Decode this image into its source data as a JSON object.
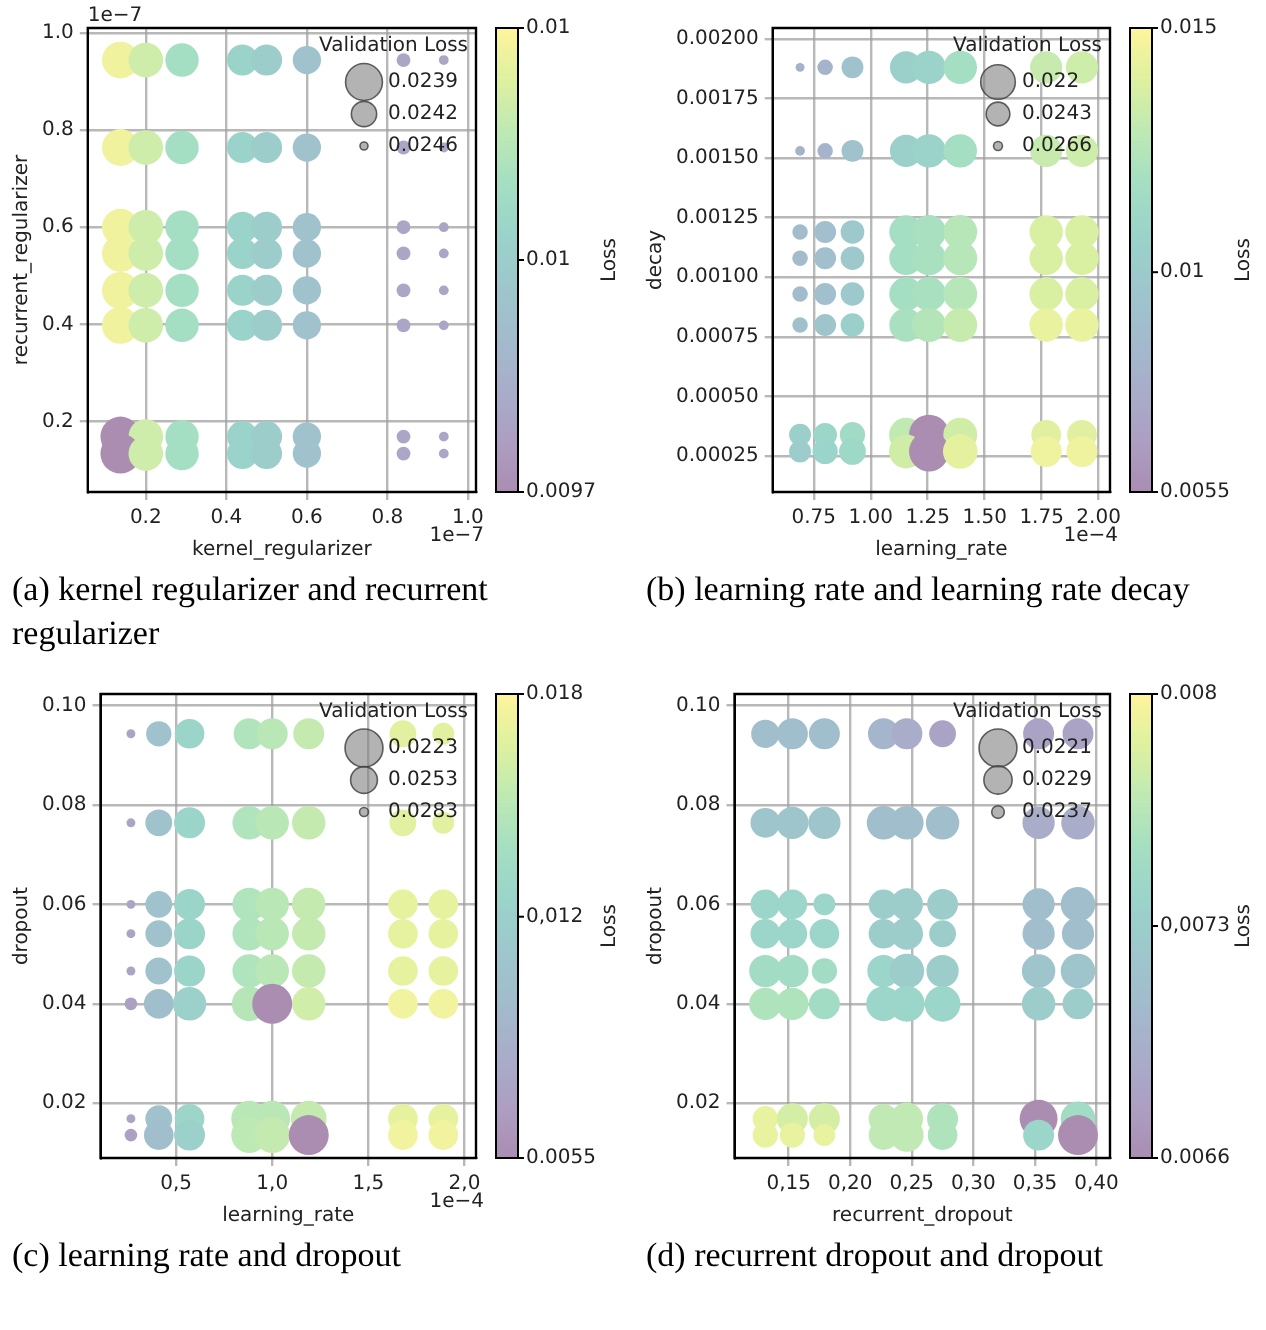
{
  "chart_data": [
    {
      "type": "bubble",
      "title": "(a) kernel regularizer and recurrent regularizer",
      "xlabel": "kernel_regularizer",
      "ylabel": "recurrent_regularizer",
      "clabel": "Loss",
      "legend_title": "Validation Loss",
      "grid": true,
      "marker": "circle",
      "annotations": [
        "1e−7",
        "1e−7"
      ],
      "xlim": [
        0.056,
        1.02
      ],
      "ylim": [
        0.055,
        1.01
      ],
      "xticks": [
        {
          "value": 0.2,
          "label": "0.2"
        },
        {
          "value": 0.4,
          "label": "0.4"
        },
        {
          "value": 0.6,
          "label": "0.6"
        },
        {
          "value": 0.8,
          "label": "0.8"
        },
        {
          "value": 1.0,
          "label": "1.0"
        }
      ],
      "yticks": [
        {
          "value": 0.2,
          "label": "0.2"
        },
        {
          "value": 0.4,
          "label": "0.4"
        },
        {
          "value": 0.6,
          "label": "0.6"
        },
        {
          "value": 0.8,
          "label": "0.8"
        },
        {
          "value": 1.0,
          "label": "1.0"
        }
      ],
      "clim": [
        0.0097,
        0.0103
      ],
      "cticks": [
        {
          "value": 0.0097,
          "label": "0.0097"
        },
        {
          "value": 0.01,
          "label": "0.01"
        },
        {
          "value": 0.0103,
          "label": "0.01"
        }
      ],
      "size_legend": [
        {
          "value": 0.85,
          "label": "0.0239"
        },
        {
          "value": 0.4,
          "label": "0.0242"
        },
        {
          "value": 0.04,
          "label": "0.0246"
        }
      ],
      "x": [
        0.137,
        0.2,
        0.29,
        0.44,
        0.5,
        0.6,
        0.84,
        0.94,
        0.137,
        0.2,
        0.29,
        0.44,
        0.5,
        0.6,
        0.84,
        0.94,
        0.137,
        0.2,
        0.29,
        0.44,
        0.5,
        0.6,
        0.84,
        0.94,
        0.137,
        0.2,
        0.29,
        0.44,
        0.5,
        0.6,
        0.84,
        0.94,
        0.137,
        0.2,
        0.29,
        0.44,
        0.5,
        0.6,
        0.84,
        0.94,
        0.137,
        0.2,
        0.29,
        0.44,
        0.5,
        0.6,
        0.84,
        0.94,
        0.137,
        0.2,
        0.29,
        0.44,
        0.5,
        0.6,
        0.84,
        0.94,
        0.137,
        0.2,
        0.29,
        0.44,
        0.5,
        0.6,
        0.84,
        0.94
      ],
      "values": [
        0.944,
        0.944,
        0.944,
        0.944,
        0.944,
        0.944,
        0.944,
        0.944,
        0.764,
        0.764,
        0.764,
        0.764,
        0.764,
        0.764,
        0.764,
        0.764,
        0.6,
        0.6,
        0.6,
        0.6,
        0.6,
        0.6,
        0.6,
        0.6,
        0.546,
        0.546,
        0.546,
        0.546,
        0.546,
        0.546,
        0.546,
        0.546,
        0.47,
        0.47,
        0.47,
        0.47,
        0.47,
        0.47,
        0.47,
        0.47,
        0.398,
        0.398,
        0.398,
        0.398,
        0.398,
        0.398,
        0.398,
        0.398,
        0.169,
        0.169,
        0.169,
        0.169,
        0.169,
        0.169,
        0.169,
        0.169,
        0.134,
        0.134,
        0.134,
        0.134,
        0.134,
        0.134,
        0.134,
        0.134
      ],
      "sizes": [
        0.85,
        0.75,
        0.7,
        0.6,
        0.6,
        0.5,
        0.12,
        0.06,
        0.85,
        0.75,
        0.7,
        0.6,
        0.6,
        0.5,
        0.12,
        0.06,
        0.85,
        0.75,
        0.7,
        0.6,
        0.6,
        0.5,
        0.12,
        0.06,
        0.85,
        0.75,
        0.7,
        0.6,
        0.6,
        0.5,
        0.12,
        0.06,
        0.85,
        0.75,
        0.7,
        0.6,
        0.6,
        0.5,
        0.12,
        0.06,
        0.85,
        0.75,
        0.7,
        0.6,
        0.6,
        0.5,
        0.12,
        0.06,
        1,
        0.75,
        0.7,
        0.6,
        0.6,
        0.5,
        0.12,
        0.06,
        1,
        0.75,
        0.7,
        0.6,
        0.6,
        0.5,
        0.12,
        0.06
      ],
      "cvalues": [
        0.01027,
        0.0102,
        0.0101,
        0.01003,
        0.01,
        0.00994,
        0.0098,
        0.0098,
        0.01027,
        0.0102,
        0.0101,
        0.01003,
        0.01,
        0.00994,
        0.0098,
        0.0098,
        0.01027,
        0.0102,
        0.0101,
        0.01003,
        0.01,
        0.00994,
        0.0098,
        0.0098,
        0.01027,
        0.0102,
        0.0101,
        0.01003,
        0.01,
        0.00994,
        0.0098,
        0.0098,
        0.01027,
        0.0102,
        0.0101,
        0.01003,
        0.01,
        0.00994,
        0.0098,
        0.0098,
        0.01027,
        0.0102,
        0.0101,
        0.01003,
        0.01,
        0.00994,
        0.0098,
        0.0098,
        0.0097,
        0.0102,
        0.0101,
        0.01003,
        0.01,
        0.00994,
        0.0098,
        0.0098,
        0.0097,
        0.0102,
        0.0101,
        0.01003,
        0.01,
        0.00994,
        0.0098,
        0.0098
      ]
    },
    {
      "type": "bubble",
      "title": "(b) learning rate and learning rate decay",
      "xlabel": "learning_rate",
      "ylabel": "decay",
      "clabel": "Loss",
      "legend_title": "Validation Loss",
      "grid": true,
      "marker": "circle",
      "annotations": [
        "1e−4"
      ],
      "xlim": [
        0.57,
        2.05
      ],
      "ylim": [
        0.0001,
        0.002045
      ],
      "xticks": [
        {
          "value": 0.75,
          "label": "0.75"
        },
        {
          "value": 1.0,
          "label": "1.00"
        },
        {
          "value": 1.25,
          "label": "1.25"
        },
        {
          "value": 1.5,
          "label": "1.50"
        },
        {
          "value": 1.75,
          "label": "1.75"
        },
        {
          "value": 2.0,
          "label": "2.00"
        }
      ],
      "yticks": [
        {
          "value": 0.00025,
          "label": "0.00025"
        },
        {
          "value": 0.0005,
          "label": "0.00050"
        },
        {
          "value": 0.00075,
          "label": "0.00075"
        },
        {
          "value": 0.001,
          "label": "0.00100"
        },
        {
          "value": 0.00125,
          "label": "0.00125"
        },
        {
          "value": 0.0015,
          "label": "0.00150"
        },
        {
          "value": 0.00175,
          "label": "0.00175"
        },
        {
          "value": 0.002,
          "label": "0.00200"
        }
      ],
      "clim": [
        0.0055,
        0.015
      ],
      "cticks": [
        {
          "value": 0.0055,
          "label": "0.0055"
        },
        {
          "value": 0.01,
          "label": "0.01"
        },
        {
          "value": 0.015,
          "label": "0.015"
        }
      ],
      "size_legend": [
        {
          "value": 0.75,
          "label": "0.022"
        },
        {
          "value": 0.35,
          "label": "0.0243"
        },
        {
          "value": 0.05,
          "label": "0.0266"
        }
      ],
      "x": [
        0.69,
        0.8,
        0.92,
        1.155,
        1.256,
        1.393,
        1.77,
        1.927,
        0.69,
        0.8,
        0.92,
        1.155,
        1.256,
        1.393,
        1.77,
        1.927,
        0.69,
        0.8,
        0.92,
        1.155,
        1.256,
        1.393,
        1.77,
        1.927,
        0.69,
        0.8,
        0.92,
        1.155,
        1.256,
        1.393,
        1.77,
        1.927,
        0.69,
        0.8,
        0.92,
        1.155,
        1.256,
        1.393,
        1.77,
        1.927,
        0.69,
        0.8,
        0.92,
        1.155,
        1.256,
        1.393,
        1.77,
        1.927,
        0.69,
        0.8,
        0.92,
        1.155,
        1.256,
        1.393,
        1.77,
        1.927,
        0.69,
        0.8,
        0.92,
        1.155,
        1.256,
        1.393,
        1.77,
        1.927
      ],
      "values": [
        0.00188,
        0.00188,
        0.00188,
        0.00188,
        0.00188,
        0.00188,
        0.00188,
        0.00188,
        0.00153,
        0.00153,
        0.00153,
        0.00153,
        0.00153,
        0.00153,
        0.00153,
        0.00153,
        0.00119,
        0.00119,
        0.00119,
        0.00119,
        0.00119,
        0.00119,
        0.00119,
        0.00119,
        0.00108,
        0.00108,
        0.00108,
        0.00108,
        0.00108,
        0.00108,
        0.00108,
        0.00108,
        0.00093,
        0.00093,
        0.00093,
        0.00093,
        0.00093,
        0.00093,
        0.00093,
        0.00093,
        0.0008,
        0.0008,
        0.0008,
        0.0008,
        0.0008,
        0.0008,
        0.0008,
        0.0008,
        0.00034,
        0.00034,
        0.00034,
        0.00034,
        0.00034,
        0.00034,
        0.00034,
        0.00034,
        0.00027,
        0.00027,
        0.00027,
        0.00027,
        0.00027,
        0.00027,
        0.00027,
        0.00027
      ],
      "sizes": [
        0.05,
        0.15,
        0.3,
        0.65,
        0.7,
        0.7,
        0.65,
        0.65,
        0.06,
        0.15,
        0.3,
        0.65,
        0.7,
        0.7,
        0.65,
        0.65,
        0.15,
        0.3,
        0.35,
        0.7,
        0.72,
        0.72,
        0.7,
        0.7,
        0.15,
        0.3,
        0.35,
        0.7,
        0.72,
        0.72,
        0.7,
        0.7,
        0.15,
        0.3,
        0.35,
        0.7,
        0.72,
        0.72,
        0.7,
        0.7,
        0.15,
        0.3,
        0.35,
        0.7,
        0.72,
        0.72,
        0.7,
        0.7,
        0.3,
        0.35,
        0.4,
        0.72,
        1,
        0.72,
        0.55,
        0.55,
        0.3,
        0.4,
        0.45,
        0.72,
        1,
        0.75,
        0.6,
        0.6
      ],
      "cvalues": [
        0.0079,
        0.0081,
        0.0093,
        0.0105,
        0.0107,
        0.0118,
        0.0132,
        0.0134,
        0.008,
        0.0081,
        0.0093,
        0.0105,
        0.0107,
        0.0118,
        0.0132,
        0.0134,
        0.0088,
        0.009,
        0.0098,
        0.0118,
        0.012,
        0.0126,
        0.0138,
        0.0138,
        0.0088,
        0.009,
        0.0098,
        0.0118,
        0.012,
        0.0126,
        0.0138,
        0.0138,
        0.0088,
        0.009,
        0.0098,
        0.0118,
        0.012,
        0.0126,
        0.0138,
        0.0138,
        0.0092,
        0.0095,
        0.0105,
        0.012,
        0.0125,
        0.0132,
        0.0143,
        0.0143,
        0.0105,
        0.011,
        0.0115,
        0.013,
        0.0055,
        0.0135,
        0.014,
        0.014,
        0.0102,
        0.0108,
        0.0112,
        0.0135,
        0.0055,
        0.0142,
        0.0145,
        0.0145
      ]
    },
    {
      "type": "bubble",
      "title": "(c) learning rate and dropout",
      "xlabel": "learning_rate",
      "ylabel": "dropout",
      "clabel": "Loss",
      "legend_title": "Validation Loss",
      "grid": true,
      "marker": "circle",
      "annotations": [
        "1e−4"
      ],
      "xlim": [
        0.107,
        2.06
      ],
      "ylim": [
        0.009,
        0.1023
      ],
      "xticks": [
        {
          "value": 0.5,
          "label": "0,5"
        },
        {
          "value": 1.0,
          "label": "1,0"
        },
        {
          "value": 1.5,
          "label": "1,5"
        },
        {
          "value": 2.0,
          "label": "2,0"
        }
      ],
      "yticks": [
        {
          "value": 0.02,
          "label": "0.02"
        },
        {
          "value": 0.04,
          "label": "0.04"
        },
        {
          "value": 0.06,
          "label": "0.06"
        },
        {
          "value": 0.08,
          "label": "0.08"
        },
        {
          "value": 0.1,
          "label": "0.10"
        }
      ],
      "clim": [
        0.0055,
        0.018
      ],
      "cticks": [
        {
          "value": 0.0055,
          "label": "0.0055"
        },
        {
          "value": 0.012,
          "label": "0,012"
        },
        {
          "value": 0.018,
          "label": "0.018"
        }
      ],
      "size_legend": [
        {
          "value": 0.9,
          "label": "0.0223"
        },
        {
          "value": 0.45,
          "label": "0.0253"
        },
        {
          "value": 0.05,
          "label": "0.0283"
        }
      ],
      "x": [
        0.265,
        0.41,
        0.57,
        0.88,
        1.0,
        1.19,
        1.68,
        1.89,
        0.265,
        0.41,
        0.57,
        0.88,
        1.0,
        1.19,
        1.68,
        1.89,
        0.265,
        0.41,
        0.57,
        0.88,
        1.0,
        1.19,
        1.68,
        1.89,
        0.265,
        0.41,
        0.57,
        0.88,
        1.0,
        1.19,
        1.68,
        1.89,
        0.265,
        0.41,
        0.57,
        0.88,
        1.0,
        1.19,
        1.68,
        1.89,
        0.265,
        0.41,
        0.57,
        0.88,
        1.0,
        1.19,
        1.68,
        1.89,
        0.265,
        0.41,
        0.57,
        0.88,
        1.0,
        1.19,
        1.68,
        1.89,
        0.265,
        0.41,
        0.57,
        0.88,
        1.0,
        1.19,
        1.68,
        1.89
      ],
      "values": [
        0.0943,
        0.0943,
        0.0943,
        0.0943,
        0.0943,
        0.0943,
        0.0943,
        0.0943,
        0.0764,
        0.0764,
        0.0764,
        0.0764,
        0.0764,
        0.0764,
        0.0764,
        0.0764,
        0.06,
        0.06,
        0.06,
        0.06,
        0.06,
        0.06,
        0.06,
        0.06,
        0.0541,
        0.0541,
        0.0541,
        0.0541,
        0.0541,
        0.0541,
        0.0541,
        0.0541,
        0.0466,
        0.0466,
        0.0466,
        0.0466,
        0.0466,
        0.0466,
        0.0466,
        0.0466,
        0.04,
        0.04,
        0.04,
        0.04,
        0.04,
        0.04,
        0.04,
        0.04,
        0.0169,
        0.0169,
        0.0169,
        0.0169,
        0.0169,
        0.0169,
        0.0169,
        0.0169,
        0.0136,
        0.0136,
        0.0136,
        0.0136,
        0.0136,
        0.0136,
        0.0136,
        0.0136
      ],
      "sizes": [
        0.05,
        0.4,
        0.55,
        0.6,
        0.6,
        0.6,
        0.45,
        0.3,
        0.05,
        0.45,
        0.6,
        0.7,
        0.7,
        0.7,
        0.45,
        0.3,
        0.05,
        0.45,
        0.6,
        0.7,
        0.7,
        0.7,
        0.55,
        0.55,
        0.05,
        0.45,
        0.6,
        0.7,
        0.7,
        0.7,
        0.55,
        0.55,
        0.05,
        0.45,
        0.6,
        0.7,
        0.7,
        0.7,
        0.55,
        0.55,
        0.1,
        0.55,
        0.7,
        0.75,
        1,
        0.7,
        0.55,
        0.55,
        0.05,
        0.45,
        0.55,
        0.8,
        0.8,
        0.8,
        0.55,
        0.55,
        0.1,
        0.55,
        0.6,
        0.8,
        0.8,
        1,
        0.55,
        0.55
      ],
      "cvalues": [
        0.0075,
        0.0105,
        0.0125,
        0.0145,
        0.015,
        0.0155,
        0.0168,
        0.0168,
        0.0075,
        0.0105,
        0.0125,
        0.0145,
        0.015,
        0.0155,
        0.0168,
        0.0168,
        0.0075,
        0.0105,
        0.0125,
        0.0145,
        0.015,
        0.0155,
        0.017,
        0.017,
        0.0075,
        0.0105,
        0.0125,
        0.0145,
        0.015,
        0.0155,
        0.017,
        0.017,
        0.0075,
        0.0105,
        0.0125,
        0.0145,
        0.015,
        0.0155,
        0.017,
        0.017,
        0.007,
        0.01,
        0.0122,
        0.0148,
        0.0055,
        0.016,
        0.0175,
        0.0175,
        0.0075,
        0.0105,
        0.0128,
        0.015,
        0.015,
        0.0155,
        0.017,
        0.017,
        0.007,
        0.01,
        0.0122,
        0.0152,
        0.0155,
        0.0055,
        0.0175,
        0.0175
      ]
    },
    {
      "type": "bubble",
      "title": "(d) recurrent dropout and dropout",
      "xlabel": "recurrent_dropout",
      "ylabel": "dropout",
      "clabel": "Loss",
      "legend_title": "Validation Loss",
      "grid": true,
      "marker": "circle",
      "xlim": [
        0.106,
        0.411
      ],
      "ylim": [
        0.009,
        0.1023
      ],
      "xticks": [
        {
          "value": 0.15,
          "label": "0,15"
        },
        {
          "value": 0.2,
          "label": "0,20"
        },
        {
          "value": 0.25,
          "label": "0,25"
        },
        {
          "value": 0.3,
          "label": "0,30"
        },
        {
          "value": 0.35,
          "label": "0,35"
        },
        {
          "value": 0.4,
          "label": "0,40"
        }
      ],
      "yticks": [
        {
          "value": 0.02,
          "label": "0.02"
        },
        {
          "value": 0.04,
          "label": "0.04"
        },
        {
          "value": 0.06,
          "label": "0.06"
        },
        {
          "value": 0.08,
          "label": "0.08"
        },
        {
          "value": 0.1,
          "label": "0.10"
        }
      ],
      "clim": [
        0.0066,
        0.008
      ],
      "cticks": [
        {
          "value": 0.0066,
          "label": "0.0066"
        },
        {
          "value": 0.0073,
          "label": "0,0073"
        },
        {
          "value": 0.008,
          "label": "0.008"
        }
      ],
      "size_legend": [
        {
          "value": 0.9,
          "label": "0.0221"
        },
        {
          "value": 0.5,
          "label": "0.0229"
        },
        {
          "value": 0.1,
          "label": "0.0237"
        }
      ],
      "x": [
        0.131,
        0.153,
        0.179,
        0.227,
        0.246,
        0.275,
        0.353,
        0.385,
        0.131,
        0.153,
        0.179,
        0.227,
        0.246,
        0.275,
        0.353,
        0.385,
        0.131,
        0.153,
        0.179,
        0.227,
        0.246,
        0.275,
        0.353,
        0.385,
        0.131,
        0.153,
        0.179,
        0.227,
        0.246,
        0.275,
        0.353,
        0.385,
        0.131,
        0.153,
        0.179,
        0.227,
        0.246,
        0.275,
        0.353,
        0.385,
        0.131,
        0.153,
        0.179,
        0.227,
        0.246,
        0.275,
        0.353,
        0.385,
        0.131,
        0.153,
        0.179,
        0.227,
        0.246,
        0.275,
        0.353,
        0.385,
        0.131,
        0.153,
        0.179,
        0.227,
        0.246,
        0.275,
        0.353,
        0.385
      ],
      "values": [
        0.0943,
        0.0943,
        0.0943,
        0.0943,
        0.0943,
        0.0943,
        0.0943,
        0.0943,
        0.0764,
        0.0764,
        0.0764,
        0.0764,
        0.0764,
        0.0764,
        0.0764,
        0.0764,
        0.06,
        0.06,
        0.06,
        0.06,
        0.06,
        0.06,
        0.06,
        0.06,
        0.0541,
        0.0541,
        0.0541,
        0.0541,
        0.0541,
        0.0541,
        0.0541,
        0.0541,
        0.0466,
        0.0466,
        0.0466,
        0.0466,
        0.0466,
        0.0466,
        0.0466,
        0.0466,
        0.04,
        0.04,
        0.04,
        0.04,
        0.04,
        0.04,
        0.04,
        0.04,
        0.0169,
        0.0169,
        0.0169,
        0.0169,
        0.0169,
        0.0169,
        0.0169,
        0.0169,
        0.0136,
        0.0136,
        0.0136,
        0.0136,
        0.0136,
        0.0136,
        0.0136,
        0.0136
      ],
      "sizes": [
        0.5,
        0.6,
        0.6,
        0.6,
        0.6,
        0.45,
        0.6,
        0.6,
        0.55,
        0.65,
        0.65,
        0.7,
        0.7,
        0.7,
        0.65,
        0.7,
        0.55,
        0.55,
        0.3,
        0.55,
        0.65,
        0.6,
        0.65,
        0.75,
        0.55,
        0.55,
        0.55,
        0.55,
        0.65,
        0.45,
        0.65,
        0.65,
        0.65,
        0.65,
        0.4,
        0.65,
        0.75,
        0.65,
        0.7,
        0.75,
        0.65,
        0.65,
        0.6,
        0.75,
        0.8,
        0.8,
        0.7,
        0.6,
        0.4,
        0.6,
        0.6,
        0.55,
        0.65,
        0.6,
        0.9,
        0.75,
        0.4,
        0.4,
        0.3,
        0.55,
        0.7,
        0.55,
        0.6,
        1
      ],
      "cvalues": [
        0.0071,
        0.0071,
        0.0071,
        0.007,
        0.0069,
        0.0068,
        0.0068,
        0.0068,
        0.0072,
        0.0072,
        0.0072,
        0.0071,
        0.0071,
        0.0071,
        0.0069,
        0.0069,
        0.0074,
        0.0074,
        0.0074,
        0.0073,
        0.0073,
        0.0073,
        0.0071,
        0.0071,
        0.0074,
        0.0074,
        0.0074,
        0.0073,
        0.0073,
        0.0073,
        0.0071,
        0.0071,
        0.0075,
        0.0075,
        0.0075,
        0.0074,
        0.0073,
        0.0073,
        0.0072,
        0.0072,
        0.0076,
        0.0076,
        0.0075,
        0.0074,
        0.0074,
        0.0074,
        0.0073,
        0.0073,
        0.0079,
        0.0078,
        0.0078,
        0.0077,
        0.0077,
        0.0076,
        0.0066,
        0.0075,
        0.0079,
        0.0079,
        0.0079,
        0.0077,
        0.0077,
        0.0076,
        0.0074,
        0.0066
      ]
    }
  ]
}
